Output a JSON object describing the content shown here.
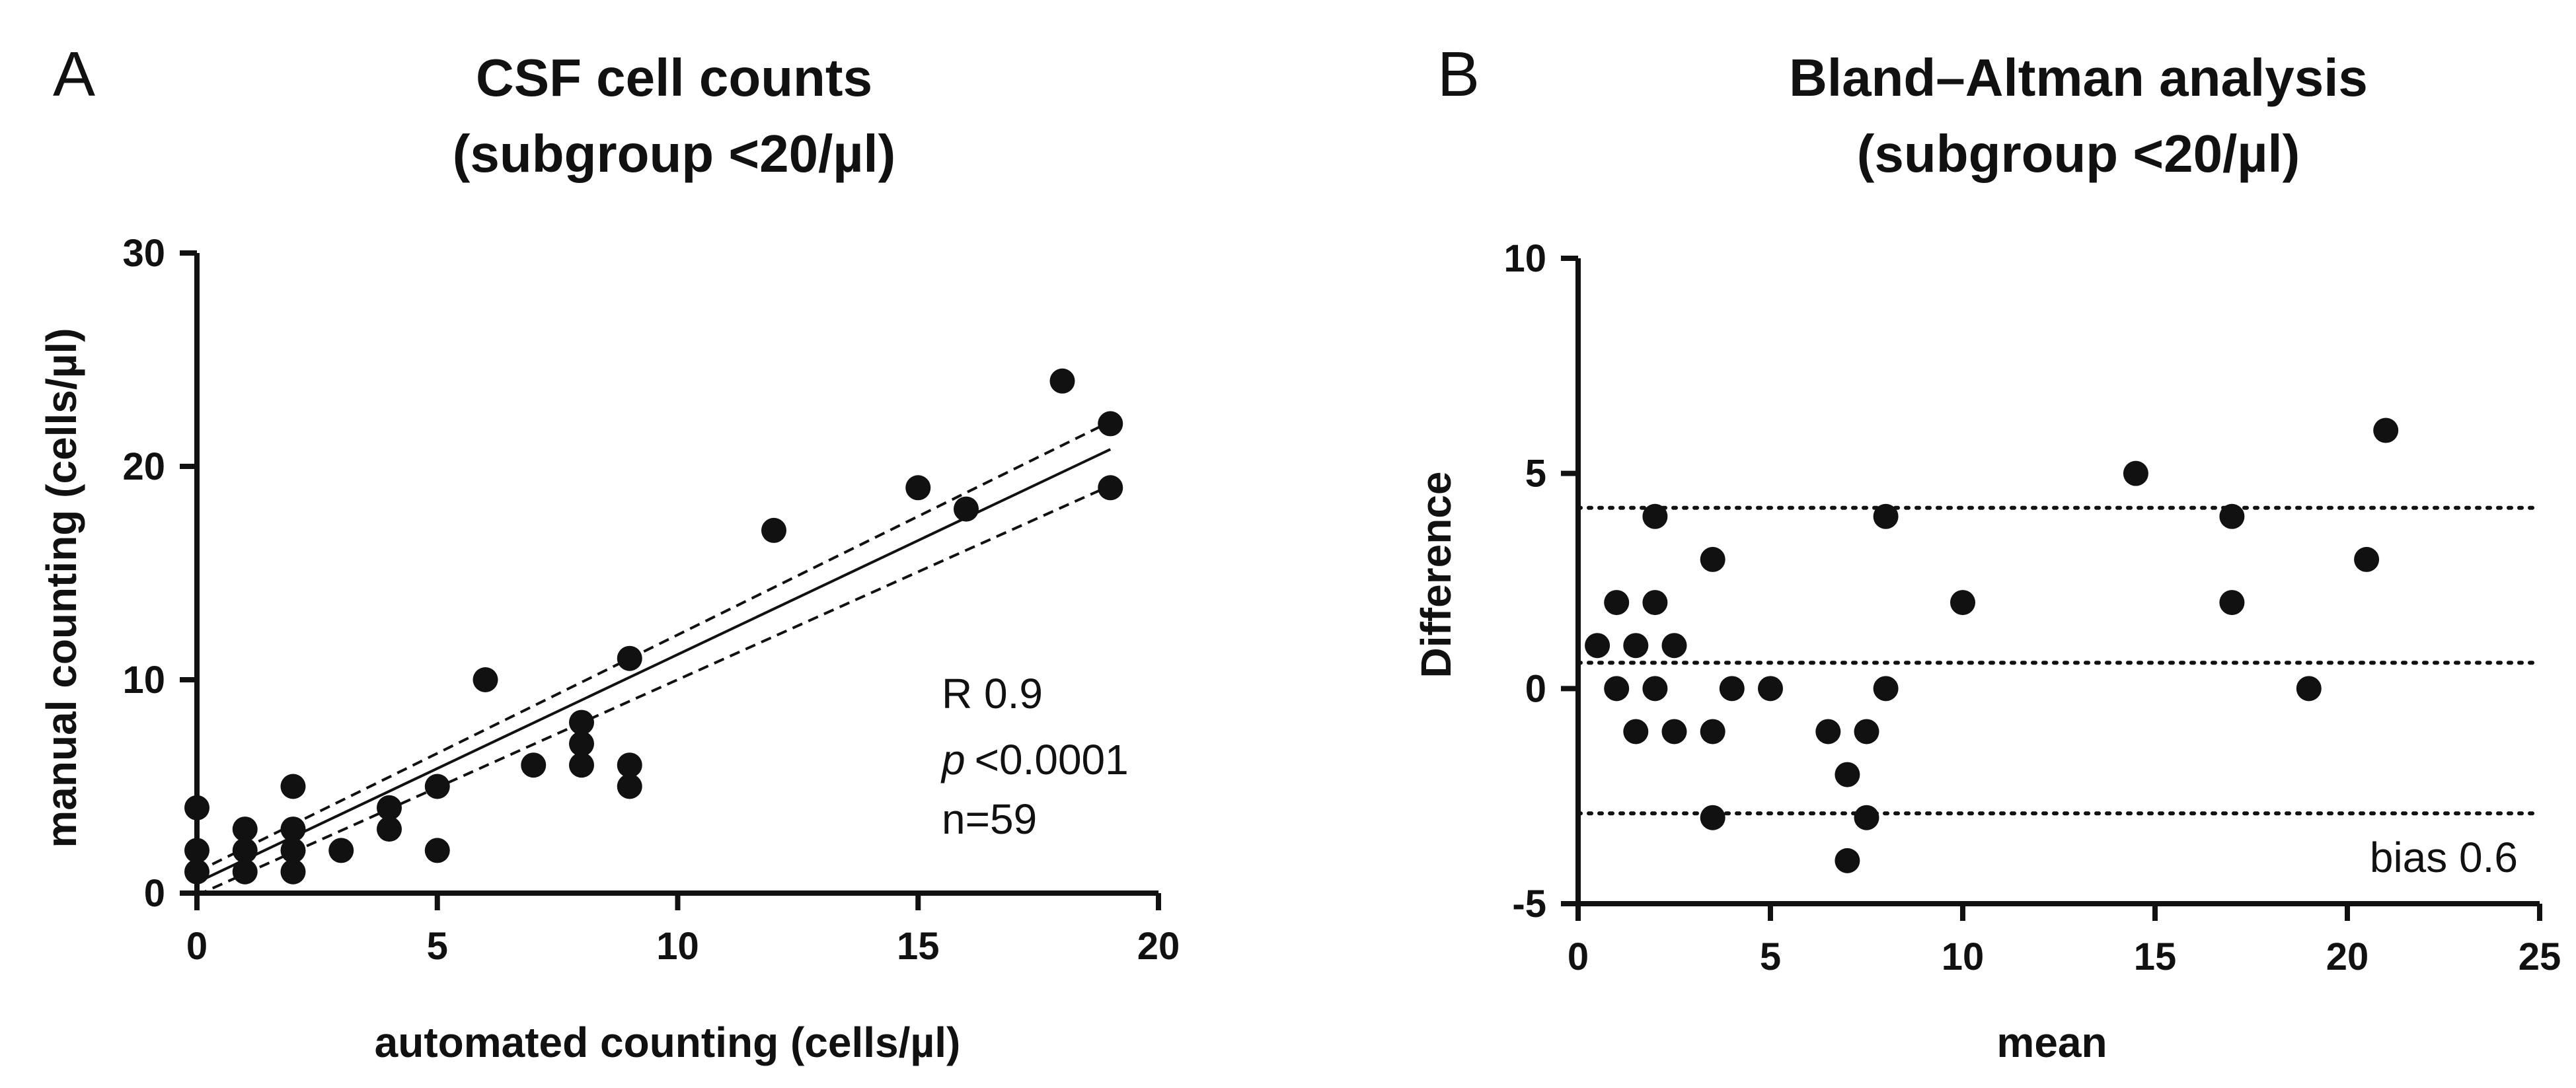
{
  "chart_data": [
    {
      "panel": "A",
      "type": "scatter",
      "title": "CSF cell counts",
      "subtitle": "(subgroup <20/µl)",
      "xlabel": "automated counting (cells/µl)",
      "ylabel": "manual counting (cells/µl)",
      "xlim": [
        0,
        20
      ],
      "ylim": [
        0,
        30
      ],
      "xticks": [
        0,
        5,
        10,
        15,
        20
      ],
      "yticks": [
        0,
        10,
        20,
        30
      ],
      "grid": false,
      "points": [
        [
          0,
          4
        ],
        [
          0,
          2
        ],
        [
          0,
          1
        ],
        [
          1,
          3
        ],
        [
          1,
          2
        ],
        [
          1,
          1
        ],
        [
          2,
          5
        ],
        [
          2,
          3
        ],
        [
          2,
          2
        ],
        [
          2,
          1
        ],
        [
          3,
          2
        ],
        [
          4,
          4
        ],
        [
          4,
          3
        ],
        [
          5,
          5
        ],
        [
          5,
          2
        ],
        [
          6,
          10
        ],
        [
          7,
          6
        ],
        [
          8,
          8
        ],
        [
          8,
          7
        ],
        [
          8,
          6
        ],
        [
          9,
          11
        ],
        [
          9,
          6
        ],
        [
          9,
          5
        ],
        [
          12,
          17
        ],
        [
          15,
          19
        ],
        [
          16,
          18
        ],
        [
          18,
          24
        ],
        [
          19,
          22
        ],
        [
          19,
          19
        ]
      ],
      "regression": {
        "x": [
          0,
          19
        ],
        "y": [
          0.5,
          20.8
        ]
      },
      "confidence_band_upper": {
        "x": [
          0,
          19
        ],
        "y": [
          1.0,
          22.1
        ]
      },
      "confidence_band_lower": {
        "x": [
          0,
          19
        ],
        "y": [
          -0.1,
          19.1
        ]
      },
      "annotations": {
        "r": "R 0.9",
        "p_symbol": "p",
        "p_value": "<0.0001",
        "n": "n=59"
      }
    },
    {
      "panel": "B",
      "type": "scatter",
      "title": "Bland–Altman analysis",
      "subtitle": "(subgroup <20/µl)",
      "xlabel": "mean",
      "ylabel": "Difference",
      "xlim": [
        0,
        25
      ],
      "ylim": [
        -5,
        10
      ],
      "xticks": [
        0,
        5,
        10,
        15,
        20,
        25
      ],
      "yticks": [
        -5,
        0,
        5,
        10
      ],
      "grid": false,
      "points": [
        [
          0.5,
          1
        ],
        [
          1,
          2
        ],
        [
          1,
          0
        ],
        [
          1.5,
          1
        ],
        [
          1.5,
          -1
        ],
        [
          2,
          4
        ],
        [
          2,
          2
        ],
        [
          2,
          0
        ],
        [
          2.5,
          1
        ],
        [
          2.5,
          -1
        ],
        [
          3.5,
          3
        ],
        [
          3.5,
          -1
        ],
        [
          3.5,
          -3
        ],
        [
          4,
          0
        ],
        [
          5,
          0
        ],
        [
          6.5,
          -1
        ],
        [
          7,
          -2
        ],
        [
          7,
          -4
        ],
        [
          7.5,
          -1
        ],
        [
          7.5,
          -3
        ],
        [
          8,
          4
        ],
        [
          8,
          0
        ],
        [
          10,
          2
        ],
        [
          14.5,
          5
        ],
        [
          17,
          4
        ],
        [
          17,
          2
        ],
        [
          19,
          0
        ],
        [
          20.5,
          3
        ],
        [
          21,
          6
        ]
      ],
      "reference_lines": [
        4.2,
        0.6,
        -2.9
      ],
      "annotations": {
        "bias": "bias 0.6"
      }
    }
  ]
}
